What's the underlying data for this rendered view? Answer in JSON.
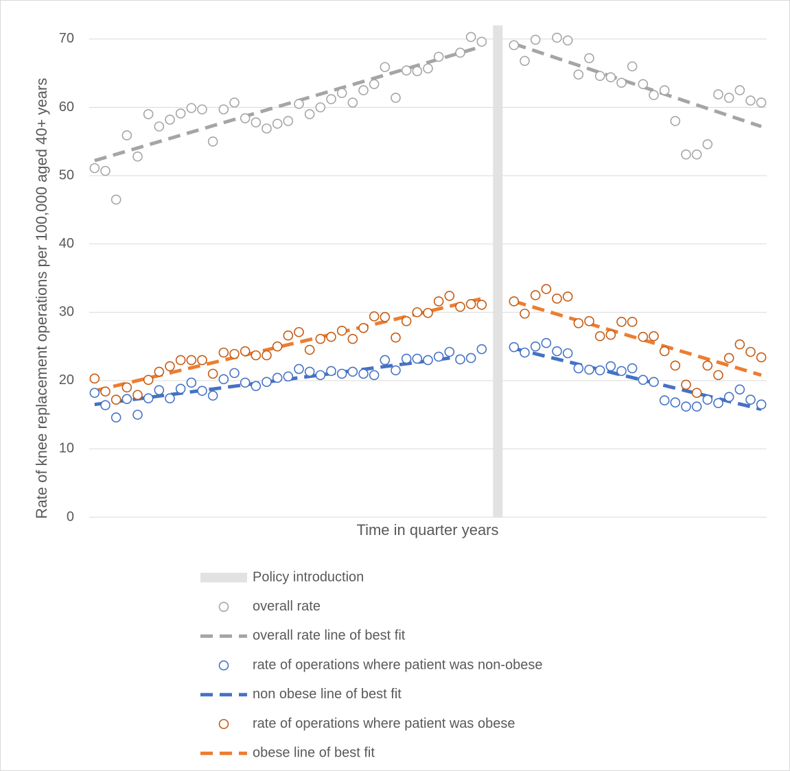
{
  "chart_data": {
    "type": "scatter",
    "y_label": "Rate of knee replacement operations per 100,000 aged 40+ years",
    "x_label": "Time in quarter years",
    "xlim": [
      0.5,
      63.5
    ],
    "ylim": [
      0,
      72
    ],
    "yticks": [
      0,
      10,
      20,
      30,
      40,
      50,
      60,
      70
    ],
    "grid": true,
    "policy": {
      "name": "Policy introduction",
      "x": 38.5,
      "color": "#e2e2e2"
    },
    "x": [
      1,
      2,
      3,
      4,
      5,
      6,
      7,
      8,
      9,
      10,
      11,
      12,
      13,
      14,
      15,
      16,
      17,
      18,
      19,
      20,
      21,
      22,
      23,
      24,
      25,
      26,
      27,
      28,
      29,
      30,
      31,
      32,
      33,
      34,
      35,
      36,
      37,
      40,
      41,
      42,
      43,
      44,
      45,
      46,
      47,
      48,
      49,
      50,
      51,
      52,
      53,
      54,
      55,
      56,
      57,
      58,
      59,
      60,
      61,
      62,
      63
    ],
    "series": [
      {
        "name": "overall rate",
        "style": "marker",
        "color": "#a5a5a5",
        "values": [
          51.1,
          50.7,
          46.5,
          55.9,
          52.8,
          59.0,
          57.2,
          58.2,
          59.1,
          59.9,
          59.7,
          55.0,
          59.7,
          60.7,
          58.4,
          57.8,
          56.9,
          57.6,
          58.0,
          60.5,
          59.0,
          60.0,
          61.2,
          62.1,
          60.7,
          62.5,
          63.4,
          65.9,
          61.4,
          65.4,
          65.3,
          65.7,
          67.4,
          null,
          68.0,
          70.3,
          69.6,
          69.1,
          66.8,
          69.9,
          null,
          70.2,
          69.8,
          64.8,
          67.2,
          64.6,
          64.4,
          63.6,
          66.0,
          63.4,
          61.8,
          62.5,
          58.0,
          53.1,
          53.1,
          54.6,
          61.9,
          61.4,
          62.5,
          61.0,
          60.7
        ]
      },
      {
        "name": "overall rate line of best fit",
        "style": "dashed",
        "color": "#a5a5a5",
        "x": [
          1,
          37,
          38.5,
          40,
          63
        ],
        "values": [
          52.2,
          68.9,
          null,
          69.3,
          57.2
        ]
      },
      {
        "name": "rate of operations where patient was non-obese",
        "style": "marker",
        "color": "#4472c4",
        "values": [
          18.2,
          16.4,
          14.6,
          17.3,
          15.0,
          17.4,
          18.6,
          17.4,
          18.8,
          19.7,
          18.5,
          17.8,
          20.2,
          21.1,
          19.7,
          19.2,
          19.8,
          20.4,
          20.6,
          21.7,
          21.3,
          20.8,
          21.4,
          21.0,
          21.3,
          21.0,
          20.8,
          23.0,
          21.5,
          23.2,
          23.2,
          23.0,
          23.5,
          24.2,
          23.1,
          23.3,
          24.6,
          24.9,
          24.1,
          25.0,
          25.5,
          24.3,
          24.0,
          21.8,
          21.6,
          21.5,
          22.1,
          21.4,
          21.8,
          20.1,
          19.8,
          17.1,
          16.8,
          16.2,
          16.2,
          17.2,
          16.7,
          17.6,
          18.7,
          17.2,
          16.5
        ]
      },
      {
        "name": "non obese line of best fit",
        "style": "dashed",
        "color": "#4472c4",
        "x": [
          1,
          35,
          38.5,
          40,
          63
        ],
        "values": [
          16.5,
          23.5,
          null,
          24.7,
          15.8
        ]
      },
      {
        "name": "rate of operations where patient was obese",
        "style": "marker",
        "color": "#c55a11",
        "values": [
          20.3,
          18.4,
          17.2,
          19.0,
          17.9,
          20.1,
          21.3,
          22.1,
          23.0,
          23.0,
          23.0,
          21.0,
          24.1,
          23.9,
          24.3,
          23.7,
          23.7,
          25.0,
          26.6,
          27.1,
          24.5,
          26.1,
          26.4,
          27.3,
          26.1,
          27.7,
          29.4,
          29.3,
          26.3,
          28.7,
          30.0,
          29.9,
          31.6,
          32.4,
          30.8,
          31.2,
          31.1,
          31.6,
          29.8,
          32.5,
          33.4,
          32.0,
          32.3,
          28.4,
          28.7,
          26.5,
          26.7,
          28.6,
          28.6,
          26.4,
          26.5,
          24.3,
          22.2,
          19.4,
          18.2,
          22.2,
          20.8,
          23.3,
          25.3,
          24.2,
          23.4
        ]
      },
      {
        "name": "obese line of best fit",
        "style": "dashed",
        "color": "#ed7d31",
        "x": [
          1,
          37,
          38.5,
          40,
          63
        ],
        "values": [
          18.5,
          32.0,
          null,
          31.6,
          20.8
        ]
      }
    ]
  }
}
